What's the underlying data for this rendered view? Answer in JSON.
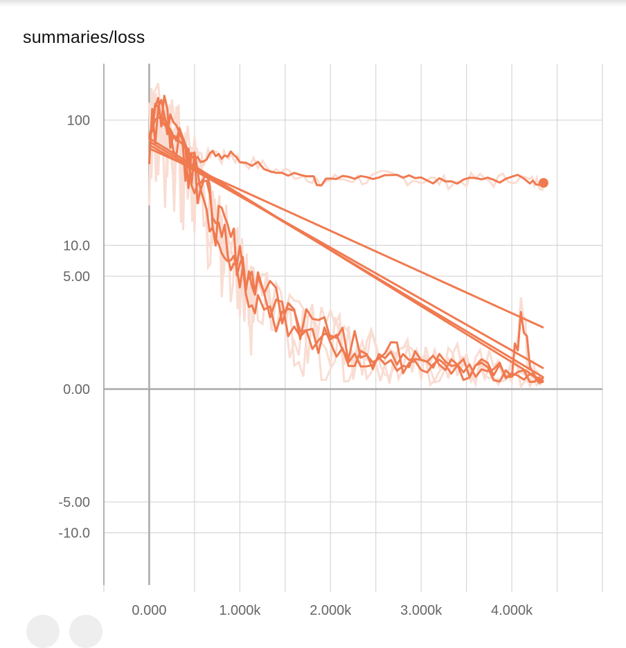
{
  "chart": {
    "title": "summaries/loss"
  },
  "colors": {
    "series": "#f07a50",
    "series_ghost": "#f9ddd3",
    "grid": "#d6d6d6",
    "axis": "#9a9a9a",
    "zero_line": "#a8a8a8"
  },
  "chart_data": {
    "type": "line",
    "title": "summaries/loss",
    "xlabel": "",
    "ylabel": "",
    "y_scale": "symlog",
    "xlim": [
      -500,
      5000
    ],
    "ylim": [
      -20,
      140
    ],
    "x_ticks": [
      {
        "value": 0,
        "label": "0.000"
      },
      {
        "value": 1000,
        "label": "1.000k"
      },
      {
        "value": 2000,
        "label": "2.000k"
      },
      {
        "value": 3000,
        "label": "3.000k"
      },
      {
        "value": 4000,
        "label": "4.000k"
      }
    ],
    "y_ticks": [
      {
        "value": 100,
        "label": "100"
      },
      {
        "value": 10,
        "label": "10.0"
      },
      {
        "value": 5,
        "label": "5.00"
      },
      {
        "value": 0,
        "label": "0.00"
      },
      {
        "value": -5,
        "label": "-5.00"
      },
      {
        "value": -10,
        "label": "-10.0"
      }
    ],
    "grid": true,
    "series": [
      {
        "x": [
          0,
          100,
          200,
          300,
          400,
          500,
          600,
          700,
          800,
          900,
          1000,
          1200,
          1400,
          1600,
          1800,
          1850,
          2000,
          2200,
          2400,
          2600,
          2800,
          3000,
          3200,
          3400,
          3600,
          3800,
          4000,
          4200,
          4300,
          4350
        ],
        "y": [
          70,
          110,
          90,
          75,
          62,
          52,
          48,
          58,
          50,
          54,
          48,
          45,
          40,
          38,
          36,
          31,
          34,
          35,
          34,
          36,
          35,
          34,
          33,
          32,
          35,
          33,
          36,
          33,
          32,
          32
        ]
      },
      {
        "x": [
          0,
          100,
          200,
          300,
          400,
          500,
          600,
          700,
          800,
          900,
          1000,
          1100,
          1200,
          1400,
          1600,
          1800,
          2000,
          2200,
          2400,
          2600,
          2800,
          3000,
          3200,
          3400,
          3600,
          3800,
          4000,
          4200,
          4350
        ],
        "y": [
          90,
          140,
          80,
          95,
          60,
          42,
          30,
          20,
          14,
          11,
          8,
          5,
          3.5,
          2.5,
          2.0,
          1.5,
          1.2,
          1.0,
          0.8,
          0.9,
          0.6,
          0.7,
          0.5,
          0.6,
          0.4,
          0.5,
          0.4,
          0.3,
          0.2
        ]
      },
      {
        "x": [
          0,
          100,
          200,
          300,
          400,
          500,
          600,
          700,
          800,
          900,
          1000,
          1100,
          1200,
          1400,
          1600,
          1800,
          2000,
          2200,
          2400,
          2600,
          2800,
          3000,
          3200,
          3400,
          3600,
          3800,
          4000,
          4200,
          4350
        ],
        "y": [
          100,
          120,
          95,
          70,
          55,
          38,
          25,
          16,
          12,
          9,
          6,
          4,
          3.0,
          2.2,
          1.6,
          1.3,
          1.0,
          0.9,
          0.7,
          0.6,
          0.7,
          0.5,
          0.6,
          0.4,
          0.5,
          0.3,
          0.4,
          0.3,
          0.2
        ]
      },
      {
        "x": [
          0,
          100,
          200,
          300,
          400,
          500,
          600,
          700,
          800,
          900,
          1000,
          1100,
          1200,
          1400,
          1600,
          1800,
          2000,
          2200,
          2400,
          2600,
          2800,
          3000,
          3200,
          3400,
          3600,
          3800,
          4000,
          4100,
          4200,
          4350
        ],
        "y": [
          80,
          130,
          100,
          85,
          65,
          45,
          32,
          22,
          15,
          10,
          7,
          5,
          3.8,
          2.8,
          2.0,
          1.6,
          1.3,
          1.1,
          0.9,
          0.8,
          0.7,
          0.6,
          0.6,
          0.5,
          0.5,
          0.6,
          0.4,
          1.8,
          0.4,
          0.3
        ]
      },
      {
        "x": [
          0,
          4350
        ],
        "y": [
          60,
          1.5
        ]
      },
      {
        "x": [
          0,
          4350
        ],
        "y": [
          64,
          0.5
        ]
      },
      {
        "x": [
          0,
          4350
        ],
        "y": [
          68,
          0.3
        ]
      },
      {
        "x": [
          0,
          4350
        ],
        "y": [
          72,
          0.2
        ]
      }
    ]
  }
}
